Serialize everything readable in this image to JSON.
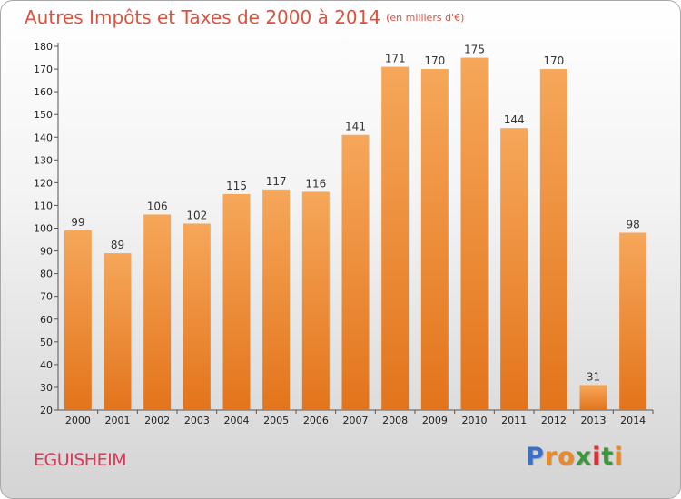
{
  "title": "Autres Impôts et Taxes de 2000 à 2014",
  "title_unit": "(en milliers d'€)",
  "location": "EGUISHEIM",
  "logo": {
    "text": "Proxiti",
    "letter_colors": [
      "#3a6fc8",
      "#e8892a",
      "#e8892a",
      "#3a9a3a",
      "#d9303a",
      "#3a9a3a",
      "#e8892a"
    ]
  },
  "chart_data": {
    "type": "bar",
    "title": "Autres Impôts et Taxes de 2000 à 2014",
    "categories": [
      "2000",
      "2001",
      "2002",
      "2003",
      "2004",
      "2005",
      "2006",
      "2007",
      "2008",
      "2009",
      "2010",
      "2011",
      "2012",
      "2013",
      "2014"
    ],
    "values": [
      99,
      89,
      106,
      102,
      115,
      117,
      116,
      141,
      171,
      170,
      175,
      144,
      170,
      31,
      98
    ],
    "ylim": [
      20,
      180
    ],
    "ytick_step": 10,
    "grid": false,
    "bar_color_top": "#f6a75a",
    "bar_color_bottom": "#e3741b"
  }
}
